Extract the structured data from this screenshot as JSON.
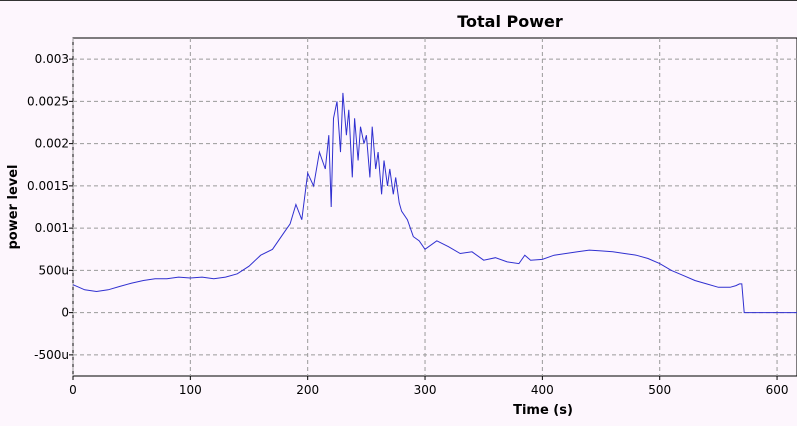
{
  "chart_data": {
    "type": "line",
    "title": "Total Power",
    "xlabel": "Time (s)",
    "ylabel": "power level",
    "xlim": [
      0,
      617
    ],
    "ylim": [
      -0.00075,
      0.00325
    ],
    "x_ticks": [
      0,
      100,
      200,
      300,
      400,
      500,
      600
    ],
    "x_tick_labels": [
      "0",
      "100",
      "200",
      "300",
      "400",
      "500",
      "600"
    ],
    "y_ticks": [
      -0.0005,
      0,
      0.0005,
      0.001,
      0.0015,
      0.002,
      0.0025,
      0.003
    ],
    "y_tick_labels": [
      "-500u",
      "0",
      "500u",
      "0.001",
      "0.0015",
      "0.002",
      "0.0025",
      "0.003"
    ],
    "grid": true,
    "line_color": "#3030d0",
    "background": "#fdf6fd",
    "series": [
      {
        "x": [
          0,
          10,
          20,
          30,
          40,
          50,
          60,
          70,
          80,
          90,
          100,
          110,
          120,
          130,
          140,
          150,
          160,
          170,
          180,
          185,
          190,
          195,
          200,
          205,
          210,
          215,
          218,
          220,
          222,
          225,
          228,
          230,
          233,
          235,
          238,
          240,
          243,
          245,
          248,
          250,
          253,
          255,
          258,
          260,
          263,
          265,
          268,
          270,
          273,
          275,
          278,
          280,
          285,
          290,
          295,
          300,
          310,
          320,
          330,
          340,
          350,
          360,
          370,
          380,
          385,
          390,
          400,
          410,
          420,
          430,
          440,
          450,
          460,
          470,
          480,
          490,
          500,
          510,
          520,
          530,
          540,
          550,
          560,
          565,
          568,
          570,
          572,
          573,
          580,
          590,
          600,
          617
        ],
        "y": [
          0.00033,
          0.00027,
          0.00025,
          0.00027,
          0.00031,
          0.00035,
          0.00038,
          0.0004,
          0.0004,
          0.00042,
          0.00041,
          0.00042,
          0.0004,
          0.00042,
          0.00046,
          0.00055,
          0.00068,
          0.00075,
          0.00095,
          0.00105,
          0.00128,
          0.0011,
          0.00165,
          0.0015,
          0.0019,
          0.0017,
          0.0021,
          0.00125,
          0.0023,
          0.0025,
          0.0019,
          0.0026,
          0.0021,
          0.0024,
          0.0016,
          0.0023,
          0.0018,
          0.0022,
          0.002,
          0.0021,
          0.0016,
          0.0022,
          0.0017,
          0.0019,
          0.0014,
          0.0018,
          0.0015,
          0.0017,
          0.0014,
          0.0016,
          0.0013,
          0.0012,
          0.0011,
          0.0009,
          0.00085,
          0.00075,
          0.00085,
          0.00078,
          0.0007,
          0.00072,
          0.00062,
          0.00065,
          0.0006,
          0.00058,
          0.00068,
          0.00062,
          0.00063,
          0.00068,
          0.0007,
          0.00072,
          0.00074,
          0.00073,
          0.00072,
          0.0007,
          0.00068,
          0.00064,
          0.00058,
          0.0005,
          0.00044,
          0.00038,
          0.00034,
          0.0003,
          0.0003,
          0.00032,
          0.00034,
          0.00034,
          0.0,
          0.0,
          0.0,
          0.0,
          0.0,
          0.0
        ]
      }
    ]
  }
}
